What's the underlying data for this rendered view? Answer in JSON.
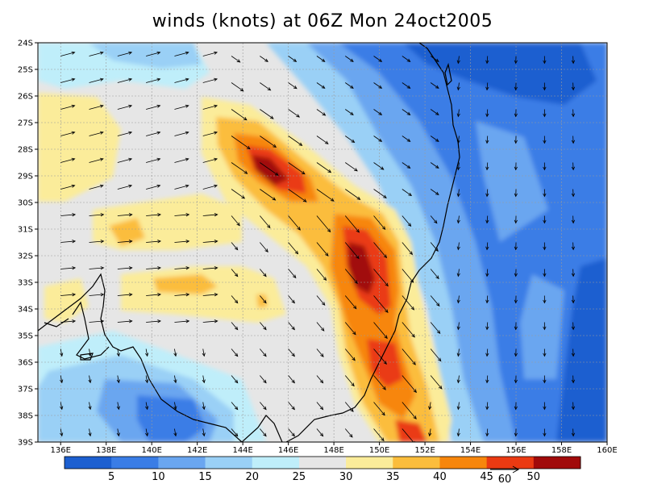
{
  "title": "winds (knots) at 06Z Mon 24oct2005",
  "lat_labels": [
    "24S",
    "25S",
    "26S",
    "27S",
    "28S",
    "29S",
    "30S",
    "31S",
    "32S",
    "33S",
    "34S",
    "35S",
    "36S",
    "37S",
    "38S",
    "39S"
  ],
  "lon_labels": [
    "136E",
    "138E",
    "140E",
    "142E",
    "144E",
    "146E",
    "148E",
    "150E",
    "152E",
    "154E",
    "156E",
    "158E",
    "160E"
  ],
  "extent": {
    "lon_min": 135,
    "lon_max": 160,
    "lat_min": -39,
    "lat_max": -24
  },
  "colorbar": {
    "labels": [
      "5",
      "10",
      "15",
      "20",
      "25",
      "30",
      "35",
      "40",
      "45",
      "50"
    ],
    "colors": [
      "#1c5fd0",
      "#3a7de6",
      "#6aa6f0",
      "#9ad0f6",
      "#bfeefa",
      "#e6e6e6",
      "#fbec9a",
      "#fbbd3c",
      "#f7860c",
      "#ea3a12",
      "#a10a0a"
    ]
  },
  "reference_vector": {
    "label": "60"
  },
  "chart_data": {
    "type": "heatmap",
    "title": "winds (knots) at 06Z Mon 24oct2005",
    "variable": "wind speed (knots) with direction vectors",
    "x_range": [
      135,
      160
    ],
    "y_range": [
      -39,
      -24
    ],
    "contour_levels": [
      5,
      10,
      15,
      20,
      25,
      30,
      35,
      40,
      45,
      50
    ],
    "jet_maxima": [
      {
        "lon": 145.5,
        "lat": -29.0,
        "speed_knots": 50
      },
      {
        "lon": 149.6,
        "lat": -32.5,
        "speed_knots": 50
      },
      {
        "lon": 150.2,
        "lat": -35.5,
        "speed_knots": 45
      }
    ]
  }
}
